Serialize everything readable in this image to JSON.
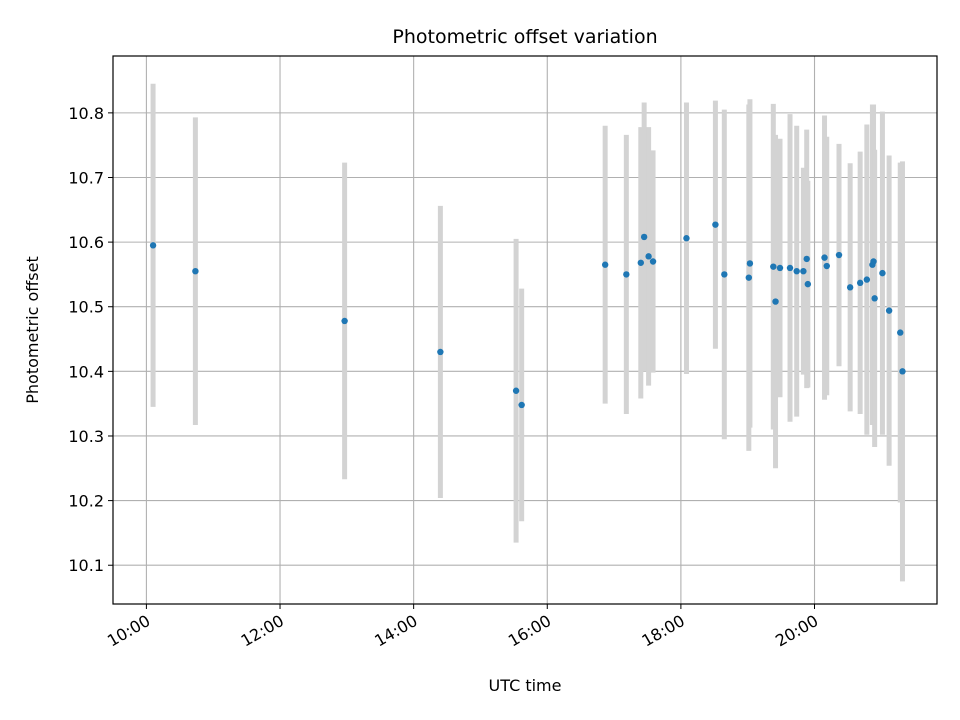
{
  "chart_data": {
    "type": "scatter",
    "title": "Photometric offset variation",
    "xlabel": "UTC time",
    "ylabel": "Photometric offset",
    "xlim": [
      "09:30",
      "21:50"
    ],
    "ylim": [
      10.04,
      10.888
    ],
    "x_ticks": [
      "10:00",
      "12:00",
      "14:00",
      "16:00",
      "18:00",
      "20:00"
    ],
    "y_ticks": [
      10.1,
      10.2,
      10.3,
      10.4,
      10.5,
      10.6,
      10.7,
      10.8
    ],
    "grid": true,
    "colors": {
      "points": "#1f77b4",
      "error_bars": "#d3d3d3",
      "grid": "#b0b0b0"
    },
    "series": [
      {
        "points": [
          {
            "x": "10:06",
            "y": 10.595,
            "err": 0.25
          },
          {
            "x": "10:44",
            "y": 10.555,
            "err": 0.238
          },
          {
            "x": "12:58",
            "y": 10.478,
            "err": 0.245
          },
          {
            "x": "14:24",
            "y": 10.43,
            "err": 0.226
          },
          {
            "x": "15:32",
            "y": 10.37,
            "err": 0.235
          },
          {
            "x": "15:37",
            "y": 10.348,
            "err": 0.18
          },
          {
            "x": "16:52",
            "y": 10.565,
            "err": 0.215
          },
          {
            "x": "17:11",
            "y": 10.55,
            "err": 0.216
          },
          {
            "x": "17:24",
            "y": 10.568,
            "err": 0.21
          },
          {
            "x": "17:27",
            "y": 10.608,
            "err": 0.208
          },
          {
            "x": "17:31",
            "y": 10.578,
            "err": 0.2
          },
          {
            "x": "17:35",
            "y": 10.57,
            "err": 0.172
          },
          {
            "x": "18:05",
            "y": 10.606,
            "err": 0.21
          },
          {
            "x": "18:31",
            "y": 10.627,
            "err": 0.192
          },
          {
            "x": "18:39",
            "y": 10.55,
            "err": 0.255
          },
          {
            "x": "19:01",
            "y": 10.545,
            "err": 0.268
          },
          {
            "x": "19:02",
            "y": 10.567,
            "err": 0.254
          },
          {
            "x": "19:23",
            "y": 10.562,
            "err": 0.252
          },
          {
            "x": "19:25",
            "y": 10.508,
            "err": 0.258
          },
          {
            "x": "19:29",
            "y": 10.56,
            "err": 0.2
          },
          {
            "x": "19:38",
            "y": 10.56,
            "err": 0.238
          },
          {
            "x": "19:44",
            "y": 10.555,
            "err": 0.225
          },
          {
            "x": "19:50",
            "y": 10.555,
            "err": 0.16
          },
          {
            "x": "19:53",
            "y": 10.574,
            "err": 0.2
          },
          {
            "x": "19:54",
            "y": 10.535,
            "err": 0.16
          },
          {
            "x": "20:09",
            "y": 10.576,
            "err": 0.22
          },
          {
            "x": "20:11",
            "y": 10.563,
            "err": 0.2
          },
          {
            "x": "20:22",
            "y": 10.58,
            "err": 0.172
          },
          {
            "x": "20:32",
            "y": 10.53,
            "err": 0.192
          },
          {
            "x": "20:41",
            "y": 10.537,
            "err": 0.203
          },
          {
            "x": "20:47",
            "y": 10.542,
            "err": 0.24
          },
          {
            "x": "20:52",
            "y": 10.565,
            "err": 0.248
          },
          {
            "x": "20:53",
            "y": 10.57,
            "err": 0.243
          },
          {
            "x": "20:54",
            "y": 10.513,
            "err": 0.23
          },
          {
            "x": "21:01",
            "y": 10.552,
            "err": 0.25
          },
          {
            "x": "21:07",
            "y": 10.494,
            "err": 0.24
          },
          {
            "x": "21:17",
            "y": 10.46,
            "err": 0.263
          },
          {
            "x": "21:19",
            "y": 10.4,
            "err": 0.325
          }
        ]
      }
    ]
  }
}
